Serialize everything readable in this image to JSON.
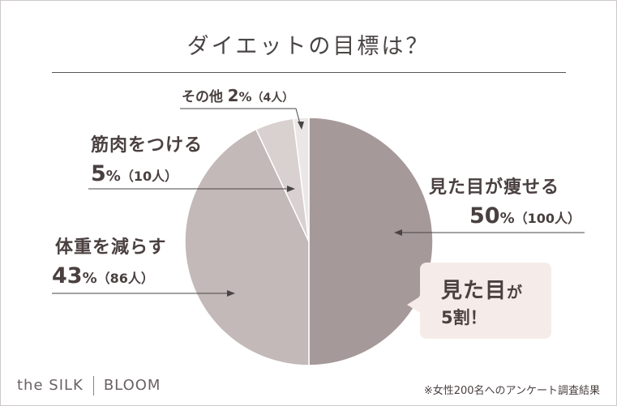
{
  "title": "ダイエットの目標は？",
  "chart_data": {
    "type": "pie",
    "title": "ダイエットの目標は？",
    "slices": [
      {
        "label": "見た目が痩せる",
        "percent": 50,
        "count_label": "（100人）",
        "color": "#a69999"
      },
      {
        "label": "体重を減らす",
        "percent": 43,
        "count_label": "（86人）",
        "color": "#c2b9b8"
      },
      {
        "label": "筋肉をつける",
        "percent": 5,
        "count_label": "（10人）",
        "color": "#d9d1d0"
      },
      {
        "label": "その他",
        "percent": 2,
        "count_label": "（4人）",
        "color": "#ece7e7"
      }
    ]
  },
  "labels": {
    "look": {
      "name": "見た目が痩せる",
      "pct": "50",
      "unit": "%",
      "count": "（100人）"
    },
    "weight": {
      "name": "体重を減らす",
      "pct": "43",
      "unit": "%",
      "count": "（86人）"
    },
    "muscle": {
      "name": "筋肉をつける",
      "pct": "5",
      "unit": "%",
      "count": "（10人）"
    },
    "other": {
      "name": "その他",
      "pct": "2",
      "unit": "%",
      "count": "（4人）"
    }
  },
  "callout": {
    "line1_a": "見た目",
    "line1_b": "が",
    "line2": "5割！"
  },
  "brand": {
    "left": "the SILK",
    "right": "BLOOM"
  },
  "footnote": "※女性200名へのアンケート調査結果",
  "colors": {
    "text": "#4a4040",
    "callout_bg": "#f5ece9",
    "leader": "#4a4545"
  }
}
